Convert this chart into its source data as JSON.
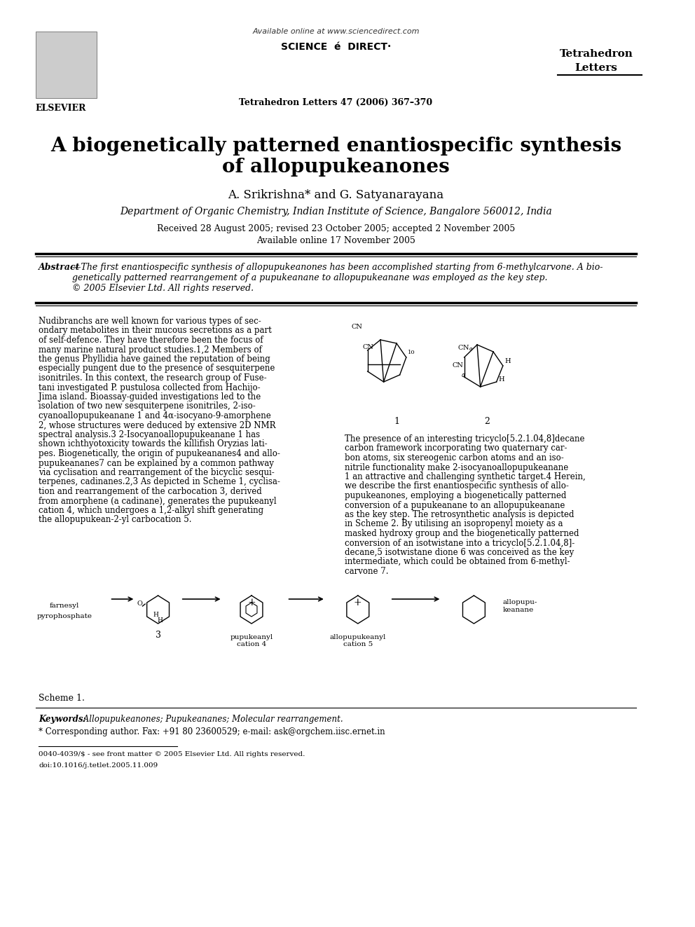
{
  "bg_color": "#ffffff",
  "title_line1": "A biogenetically patterned enantiospecific synthesis",
  "title_line2": "of allopupukeanones",
  "authors": "A. Srikrishna* and G. Satyanarayana",
  "affiliation": "Department of Organic Chemistry, Indian Institute of Science, Bangalore 560012, India",
  "received": "Received 28 August 2005; revised 23 October 2005; accepted 2 November 2005",
  "available": "Available online 17 November 2005",
  "journal_header": "Available online at www.sciencedirect.com",
  "journal_name": "Tetrahedron Letters",
  "journal_issue": "Tetrahedron Letters 47 (2006) 367–370",
  "elsevier_text": "ELSEVIER",
  "sciencedirect_text": "SCIENCE é DIRECT·",
  "abstract_label": "Abstract",
  "abstract_text": "—The first enantiospecific synthesis of allopupukeanones has been accomplished starting from 6-methylcarvone. A bio-genetically patterned rearrangement of a pupukeanane to allopupukeanane was employed as the key step.\n© 2005 Elsevier Ltd. All rights reserved.",
  "body_col1": "Nudibranchs are well known for various types of secondary metabolites in their mucous secretions as a part of self-defence. They have therefore been the focus of many marine natural product studies.1,2 Members of the genus Phyllidia have gained the reputation of being especially pungent due to the presence of sesquiterpene isonitriles. In this context, the research group of Fusetani investigated P. pustulosa collected from Hachijo-Jima island. Bioassay-guided investigations led to the isolation of two new sesquiterpene isonitriles, 2-isocyanoallopupukeanane 1 and 4α-isocyano-9-amorphene 2, whose structures were deduced by extensive 2D NMR spectral analysis.3 2-Isocyanoallopupukeanane 1 has shown ichthyotoxicity towards the killifish Oryzias latipes. Biogenetically, the origin of pupukeananes4 and allopupukeananes7 can be explained by a common pathway via cyclisation and rearrangement of the bicyclic sesquiterpenes, cadinanes.2,3 As depicted in Scheme 1, cyclisation and rearrangement of the carbocation 3, derived from amorphene (a cadinane), generates the pupukeanyl cation 4, which undergoes a 1,2-alkyl shift generating the allopupukean-2-yl carbocation 5.",
  "body_col2": "The presence of an interesting tricyclo[5.2.1.04,8]decane carbon framework incorporating two quaternary carbon atoms, six stereogenic carbon atoms and an isonitrile functionality make 2-isocyanoallopupukeanane 1 an attractive and challenging synthetic target.4 Herein, we describe the first enantiospecific synthesis of allopupukeanones, employing a biogenetically patterned conversion of a pupukeanane to an allopupukeanane as the key step. The retrosynthetic analysis is depicted in Scheme 2. By utilising an isopropenyl moiety as a masked hydroxy group and the biogenetically patterned conversion of an isotwistane into a tricyclo[5.2.1.04,8]-decane,5 isotwistane dione 6 was conceived as the key intermediate, which could be obtained from 6-methylcarvone 7.",
  "scheme1_label": "Scheme 1.",
  "scheme1_caption": "farnesyl\npyrophosphate",
  "scheme1_parts": [
    "3",
    "pupukeanyl\ncation 4",
    "allopupukeanyl\ncation 5",
    "allopupu-\nkeanane"
  ],
  "keywords_label": "Keywords:",
  "keywords_text": " Allopupukeanones; Pupukeananes; Molecular rearrangement.",
  "corresponding_author": "* Corresponding author. Fax: +91 80 23600529; e-mail: ask@orgchem.iisc.ernet.in",
  "footer_line1": "0040-4039/$ - see front matter © 2005 Elsevier Ltd. All rights reserved.",
  "footer_line2": "doi:10.1016/j.tetlet.2005.11.009"
}
